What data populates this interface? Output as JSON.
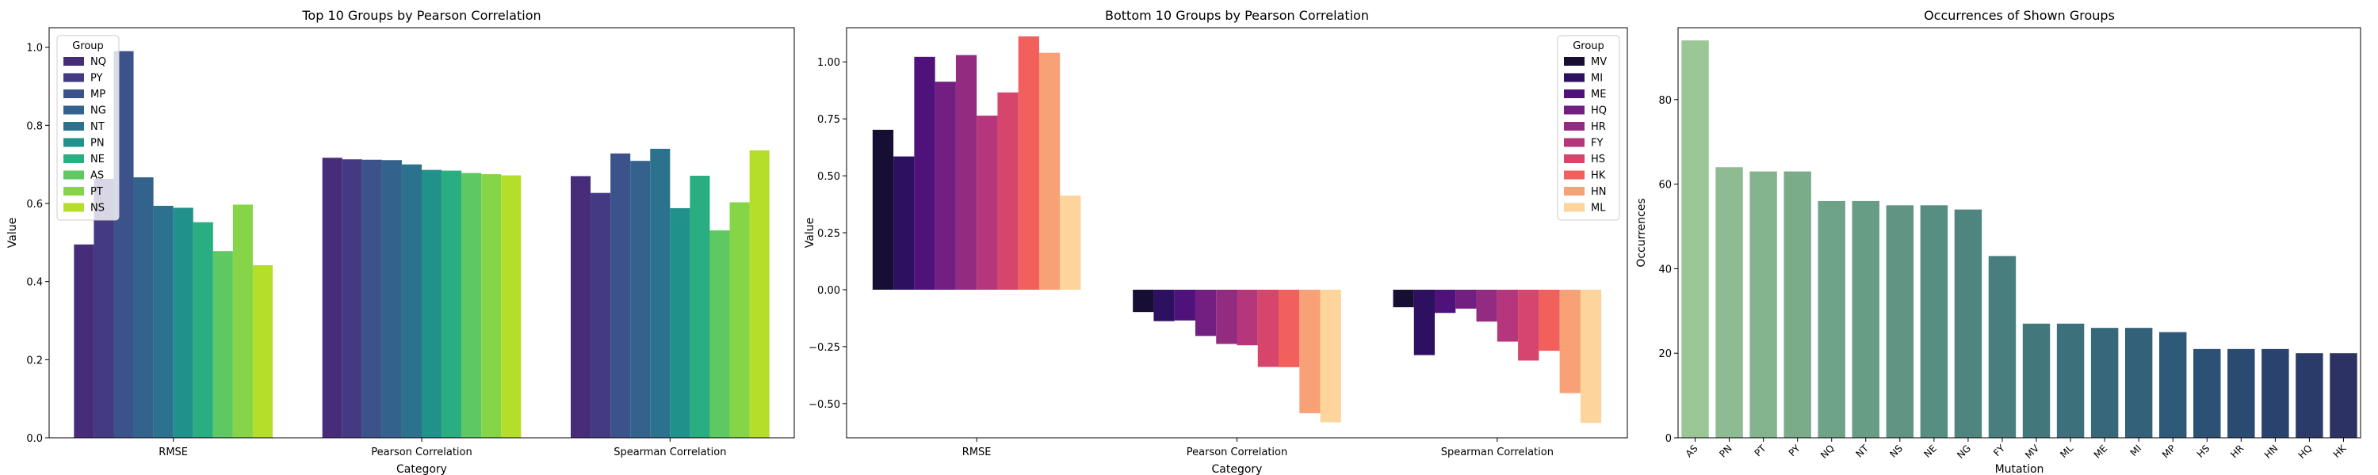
{
  "chart_data": [
    {
      "type": "bar",
      "title": "Top 10 Groups by Pearson Correlation",
      "xlabel": "Category",
      "ylabel": "Value",
      "ylim": [
        0,
        1.05
      ],
      "yticks": [
        "0.0",
        "0.2",
        "0.4",
        "0.6",
        "0.8",
        "1.0"
      ],
      "categories": [
        "RMSE",
        "Pearson Correlation",
        "Spearman Correlation"
      ],
      "legend": {
        "title": "Group",
        "position": "upper-left"
      },
      "series": [
        {
          "name": "NQ",
          "color": "#472c7a",
          "values": [
            0.495,
            0.717,
            0.67
          ]
        },
        {
          "name": "PY",
          "color": "#443983",
          "values": [
            0.663,
            0.713,
            0.627
          ]
        },
        {
          "name": "MP",
          "color": "#3b528b",
          "values": [
            0.99,
            0.712,
            0.728
          ]
        },
        {
          "name": "NG",
          "color": "#33638d",
          "values": [
            0.667,
            0.711,
            0.709
          ]
        },
        {
          "name": "NT",
          "color": "#2c728e",
          "values": [
            0.594,
            0.7,
            0.74
          ]
        },
        {
          "name": "PN",
          "color": "#21918c",
          "values": [
            0.589,
            0.686,
            0.588
          ]
        },
        {
          "name": "NE",
          "color": "#28ae80",
          "values": [
            0.552,
            0.684,
            0.671
          ]
        },
        {
          "name": "AS",
          "color": "#5ec962",
          "values": [
            0.478,
            0.678,
            0.531
          ]
        },
        {
          "name": "PT",
          "color": "#86d549",
          "values": [
            0.597,
            0.675,
            0.603
          ]
        },
        {
          "name": "NS",
          "color": "#b5de2b",
          "values": [
            0.442,
            0.672,
            0.736
          ]
        }
      ]
    },
    {
      "type": "bar",
      "title": "Bottom 10 Groups by Pearson Correlation",
      "xlabel": "Category",
      "ylabel": "Value",
      "ylim": [
        -0.65,
        1.15
      ],
      "yticks": [
        "−0.50",
        "−0.25",
        "0.00",
        "0.25",
        "0.50",
        "0.75",
        "1.00"
      ],
      "categories": [
        "RMSE",
        "Pearson Correlation",
        "Spearman Correlation"
      ],
      "legend": {
        "title": "Group",
        "position": "upper-right"
      },
      "series": [
        {
          "name": "MV",
          "color": "#160f33",
          "values": [
            0.702,
            -0.098,
            -0.077
          ]
        },
        {
          "name": "MI",
          "color": "#2d1160",
          "values": [
            0.585,
            -0.138,
            -0.287
          ]
        },
        {
          "name": "ME",
          "color": "#4f127b",
          "values": [
            1.022,
            -0.135,
            -0.102
          ]
        },
        {
          "name": "HQ",
          "color": "#721f81",
          "values": [
            0.913,
            -0.203,
            -0.083
          ]
        },
        {
          "name": "HR",
          "color": "#932b80",
          "values": [
            1.03,
            -0.238,
            -0.14
          ]
        },
        {
          "name": "FY",
          "color": "#b5367a",
          "values": [
            0.764,
            -0.244,
            -0.228
          ]
        },
        {
          "name": "HS",
          "color": "#d6456c",
          "values": [
            0.866,
            -0.339,
            -0.311
          ]
        },
        {
          "name": "HK",
          "color": "#f1605d",
          "values": [
            1.112,
            -0.34,
            -0.268
          ]
        },
        {
          "name": "HN",
          "color": "#f9a176",
          "values": [
            1.04,
            -0.542,
            -0.454
          ]
        },
        {
          "name": "ML",
          "color": "#fcd49c",
          "values": [
            0.413,
            -0.582,
            -0.585
          ]
        }
      ]
    },
    {
      "type": "bar",
      "title": "Occurrences of Shown Groups",
      "xlabel": "Mutation",
      "ylabel": "Occurrences",
      "ylim": [
        0,
        97
      ],
      "yticks": [
        "0",
        "20",
        "40",
        "60",
        "80"
      ],
      "categories": [
        "AS",
        "PN",
        "PT",
        "PY",
        "NQ",
        "NT",
        "NS",
        "NE",
        "NG",
        "FY",
        "MV",
        "ML",
        "ME",
        "MI",
        "MP",
        "HS",
        "HR",
        "HN",
        "HQ",
        "HK"
      ],
      "values": [
        94,
        64,
        63,
        63,
        56,
        56,
        55,
        55,
        54,
        43,
        27,
        27,
        26,
        26,
        25,
        21,
        21,
        21,
        20,
        20
      ],
      "colors": [
        "#9bc696",
        "#8ebb91",
        "#84b48d",
        "#7bac8a",
        "#6fa387",
        "#679c85",
        "#5f9582",
        "#568e81",
        "#4e867f",
        "#487f7e",
        "#42777c",
        "#3c707b",
        "#37687a",
        "#326179",
        "#2e5978",
        "#2b5175",
        "#2a4a72",
        "#29426e",
        "#2a3a69",
        "#2d3264"
      ]
    }
  ]
}
